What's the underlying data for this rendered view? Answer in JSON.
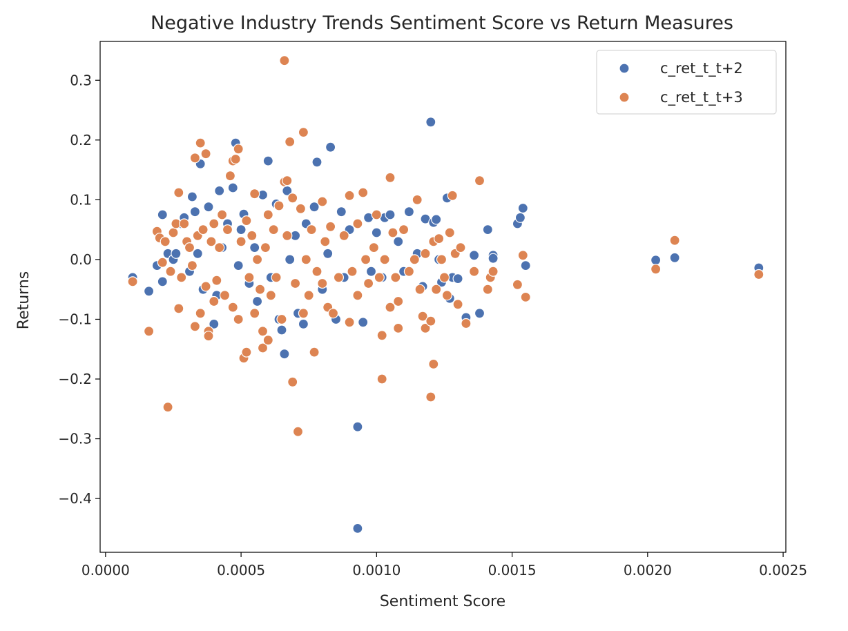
{
  "chart_data": {
    "type": "scatter",
    "title": "Negative Industry Trends Sentiment Score vs Return Measures",
    "xlabel": "Sentiment Score",
    "ylabel": "Returns",
    "xlim": [
      -2e-05,
      0.00251
    ],
    "ylim": [
      -0.49,
      0.365
    ],
    "xticks": [
      0.0,
      0.0005,
      0.001,
      0.0015,
      0.002,
      0.0025
    ],
    "xtick_labels": [
      "0.0000",
      "0.0005",
      "0.0010",
      "0.0015",
      "0.0020",
      "0.0025"
    ],
    "yticks": [
      0.3,
      0.2,
      0.1,
      0.0,
      -0.1,
      -0.2,
      -0.3,
      -0.4
    ],
    "ytick_labels": [
      "0.3",
      "0.2",
      "0.1",
      "0.0",
      "−0.1",
      "−0.2",
      "−0.3",
      "−0.4"
    ],
    "grid": false,
    "legend_position": "top-right",
    "series": [
      {
        "name": "c_ret_t_t+2",
        "color": "#4c72b0",
        "points": [
          [
            0.0001,
            -0.03
          ],
          [
            0.00016,
            -0.053
          ],
          [
            0.00019,
            -0.01
          ],
          [
            0.00021,
            0.075
          ],
          [
            0.00021,
            -0.037
          ],
          [
            0.00023,
            0.01
          ],
          [
            0.00025,
            0.0
          ],
          [
            0.00026,
            0.01
          ],
          [
            0.00028,
            0.06
          ],
          [
            0.00029,
            0.07
          ],
          [
            0.00031,
            -0.02
          ],
          [
            0.00032,
            0.105
          ],
          [
            0.00033,
            0.08
          ],
          [
            0.00034,
            0.01
          ],
          [
            0.00035,
            0.16
          ],
          [
            0.00036,
            -0.05
          ],
          [
            0.00038,
            0.088
          ],
          [
            0.00039,
            0.03
          ],
          [
            0.0004,
            -0.108
          ],
          [
            0.00041,
            -0.06
          ],
          [
            0.00042,
            0.115
          ],
          [
            0.00043,
            0.02
          ],
          [
            0.00045,
            0.06
          ],
          [
            0.00047,
            0.12
          ],
          [
            0.00048,
            0.195
          ],
          [
            0.00049,
            -0.01
          ],
          [
            0.0005,
            0.05
          ],
          [
            0.00051,
            0.076
          ],
          [
            0.00053,
            -0.04
          ],
          [
            0.00055,
            0.02
          ],
          [
            0.00056,
            -0.07
          ],
          [
            0.00058,
            0.108
          ],
          [
            0.0006,
            0.165
          ],
          [
            0.00061,
            -0.03
          ],
          [
            0.00062,
            0.05
          ],
          [
            0.00063,
            0.093
          ],
          [
            0.00064,
            -0.1
          ],
          [
            0.00065,
            -0.118
          ],
          [
            0.00066,
            -0.158
          ],
          [
            0.00067,
            0.115
          ],
          [
            0.00068,
            0.0
          ],
          [
            0.0007,
            0.04
          ],
          [
            0.00071,
            -0.09
          ],
          [
            0.00073,
            -0.108
          ],
          [
            0.00074,
            0.06
          ],
          [
            0.00077,
            0.088
          ],
          [
            0.00078,
            0.163
          ],
          [
            0.0008,
            -0.05
          ],
          [
            0.00082,
            0.01
          ],
          [
            0.00083,
            0.188
          ],
          [
            0.00085,
            -0.1
          ],
          [
            0.00087,
            0.08
          ],
          [
            0.00088,
            -0.03
          ],
          [
            0.0009,
            0.05
          ],
          [
            0.00093,
            -0.28
          ],
          [
            0.00093,
            -0.45
          ],
          [
            0.00095,
            -0.105
          ],
          [
            0.00097,
            0.07
          ],
          [
            0.00098,
            -0.02
          ],
          [
            0.001,
            0.045
          ],
          [
            0.00102,
            -0.03
          ],
          [
            0.00103,
            0.07
          ],
          [
            0.00105,
            0.075
          ],
          [
            0.00108,
            0.03
          ],
          [
            0.0011,
            -0.02
          ],
          [
            0.00112,
            0.08
          ],
          [
            0.00115,
            0.01
          ],
          [
            0.00117,
            -0.045
          ],
          [
            0.00118,
            0.068
          ],
          [
            0.0012,
            0.23
          ],
          [
            0.00121,
            0.062
          ],
          [
            0.00122,
            0.067
          ],
          [
            0.00123,
            0.0
          ],
          [
            0.00124,
            -0.038
          ],
          [
            0.00126,
            0.103
          ],
          [
            0.00127,
            -0.065
          ],
          [
            0.00128,
            -0.03
          ],
          [
            0.0013,
            -0.032
          ],
          [
            0.00133,
            -0.097
          ],
          [
            0.00136,
            0.007
          ],
          [
            0.00138,
            -0.09
          ],
          [
            0.00141,
            0.05
          ],
          [
            0.00143,
            0.007
          ],
          [
            0.00143,
            0.002
          ],
          [
            0.00152,
            0.06
          ],
          [
            0.00153,
            0.07
          ],
          [
            0.00154,
            0.086
          ],
          [
            0.00155,
            -0.01
          ],
          [
            0.00203,
            -0.001
          ],
          [
            0.0021,
            0.003
          ],
          [
            0.00241,
            -0.014
          ]
        ]
      },
      {
        "name": "c_ret_t_t+3",
        "color": "#dd8452",
        "points": [
          [
            0.0001,
            -0.037
          ],
          [
            0.00016,
            -0.12
          ],
          [
            0.00019,
            0.047
          ],
          [
            0.0002,
            0.036
          ],
          [
            0.00021,
            -0.005
          ],
          [
            0.00022,
            0.03
          ],
          [
            0.00023,
            -0.247
          ],
          [
            0.00024,
            -0.02
          ],
          [
            0.00025,
            0.045
          ],
          [
            0.00026,
            0.06
          ],
          [
            0.00027,
            0.112
          ],
          [
            0.00027,
            -0.082
          ],
          [
            0.00028,
            -0.03
          ],
          [
            0.00029,
            0.06
          ],
          [
            0.0003,
            0.03
          ],
          [
            0.00031,
            0.02
          ],
          [
            0.00032,
            -0.01
          ],
          [
            0.00033,
            0.17
          ],
          [
            0.00033,
            -0.112
          ],
          [
            0.00034,
            0.04
          ],
          [
            0.00035,
            0.195
          ],
          [
            0.00035,
            -0.09
          ],
          [
            0.00036,
            0.05
          ],
          [
            0.00037,
            0.177
          ],
          [
            0.00037,
            -0.045
          ],
          [
            0.00038,
            -0.12
          ],
          [
            0.00038,
            -0.128
          ],
          [
            0.00039,
            0.03
          ],
          [
            0.0004,
            -0.07
          ],
          [
            0.0004,
            0.06
          ],
          [
            0.00041,
            -0.035
          ],
          [
            0.00042,
            0.02
          ],
          [
            0.00043,
            0.075
          ],
          [
            0.00044,
            -0.06
          ],
          [
            0.00045,
            0.05
          ],
          [
            0.00046,
            0.14
          ],
          [
            0.00047,
            0.165
          ],
          [
            0.00047,
            -0.08
          ],
          [
            0.00048,
            0.168
          ],
          [
            0.00049,
            0.185
          ],
          [
            0.00049,
            -0.1
          ],
          [
            0.0005,
            0.03
          ],
          [
            0.00051,
            -0.165
          ],
          [
            0.00052,
            -0.155
          ],
          [
            0.00052,
            0.065
          ],
          [
            0.00053,
            -0.03
          ],
          [
            0.00054,
            0.04
          ],
          [
            0.00055,
            0.11
          ],
          [
            0.00055,
            -0.09
          ],
          [
            0.00056,
            0.0
          ],
          [
            0.00057,
            -0.05
          ],
          [
            0.00058,
            -0.148
          ],
          [
            0.00058,
            -0.12
          ],
          [
            0.00059,
            0.02
          ],
          [
            0.0006,
            -0.135
          ],
          [
            0.0006,
            0.075
          ],
          [
            0.00061,
            -0.06
          ],
          [
            0.00062,
            0.05
          ],
          [
            0.00063,
            -0.03
          ],
          [
            0.00064,
            0.09
          ],
          [
            0.00065,
            -0.1
          ],
          [
            0.00066,
            0.13
          ],
          [
            0.00066,
            0.333
          ],
          [
            0.00067,
            0.132
          ],
          [
            0.00067,
            0.04
          ],
          [
            0.00068,
            0.197
          ],
          [
            0.00069,
            0.103
          ],
          [
            0.00069,
            -0.205
          ],
          [
            0.0007,
            -0.04
          ],
          [
            0.00071,
            -0.288
          ],
          [
            0.00072,
            0.085
          ],
          [
            0.00073,
            0.213
          ],
          [
            0.00073,
            -0.09
          ],
          [
            0.00074,
            0.0
          ],
          [
            0.00075,
            -0.06
          ],
          [
            0.00076,
            0.05
          ],
          [
            0.00077,
            -0.155
          ],
          [
            0.00078,
            -0.02
          ],
          [
            0.0008,
            0.097
          ],
          [
            0.0008,
            -0.04
          ],
          [
            0.00081,
            0.03
          ],
          [
            0.00082,
            -0.08
          ],
          [
            0.00083,
            0.055
          ],
          [
            0.00084,
            -0.09
          ],
          [
            0.00086,
            -0.03
          ],
          [
            0.00088,
            0.04
          ],
          [
            0.0009,
            0.107
          ],
          [
            0.0009,
            -0.105
          ],
          [
            0.00091,
            -0.02
          ],
          [
            0.00093,
            0.06
          ],
          [
            0.00093,
            -0.06
          ],
          [
            0.00095,
            0.112
          ],
          [
            0.00096,
            0.0
          ],
          [
            0.00097,
            -0.04
          ],
          [
            0.00099,
            0.02
          ],
          [
            0.001,
            0.075
          ],
          [
            0.00101,
            -0.03
          ],
          [
            0.00102,
            -0.2
          ],
          [
            0.00102,
            -0.127
          ],
          [
            0.00103,
            0.0
          ],
          [
            0.00105,
            -0.08
          ],
          [
            0.00105,
            0.137
          ],
          [
            0.00106,
            0.045
          ],
          [
            0.00107,
            -0.03
          ],
          [
            0.00108,
            -0.115
          ],
          [
            0.00108,
            -0.07
          ],
          [
            0.0011,
            0.05
          ],
          [
            0.00112,
            -0.02
          ],
          [
            0.00114,
            0.0
          ],
          [
            0.00115,
            0.1
          ],
          [
            0.00116,
            -0.05
          ],
          [
            0.00117,
            -0.095
          ],
          [
            0.00118,
            -0.115
          ],
          [
            0.00118,
            0.01
          ],
          [
            0.0012,
            -0.103
          ],
          [
            0.0012,
            -0.23
          ],
          [
            0.00121,
            -0.175
          ],
          [
            0.00121,
            0.03
          ],
          [
            0.00122,
            -0.05
          ],
          [
            0.00123,
            0.035
          ],
          [
            0.00124,
            0.0
          ],
          [
            0.00125,
            -0.03
          ],
          [
            0.00126,
            -0.06
          ],
          [
            0.00127,
            0.045
          ],
          [
            0.00128,
            0.107
          ],
          [
            0.00129,
            0.01
          ],
          [
            0.0013,
            -0.075
          ],
          [
            0.00131,
            0.02
          ],
          [
            0.00133,
            -0.107
          ],
          [
            0.00136,
            -0.02
          ],
          [
            0.00138,
            0.132
          ],
          [
            0.00141,
            -0.05
          ],
          [
            0.00142,
            -0.03
          ],
          [
            0.00143,
            -0.02
          ],
          [
            0.00152,
            -0.042
          ],
          [
            0.00154,
            0.007
          ],
          [
            0.00155,
            -0.063
          ],
          [
            0.00203,
            -0.016
          ],
          [
            0.0021,
            0.032
          ],
          [
            0.00241,
            -0.025
          ]
        ]
      }
    ]
  }
}
